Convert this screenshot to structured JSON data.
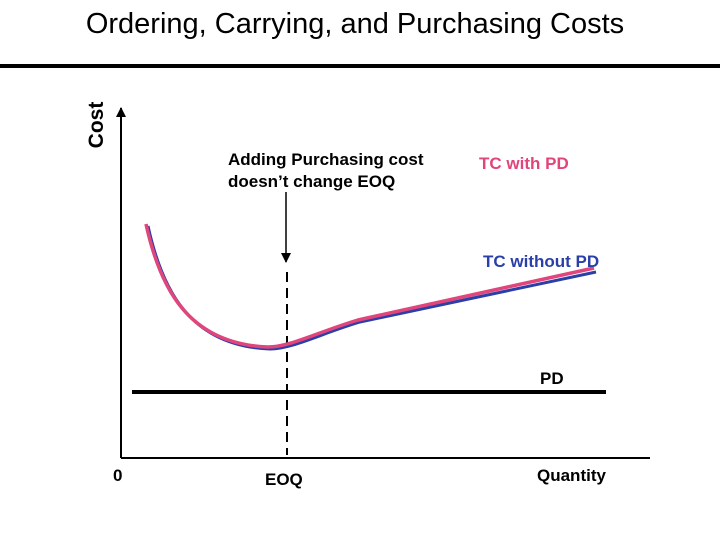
{
  "title": "Ordering, Carrying, and Purchasing Costs",
  "axes": {
    "y_label": "Cost",
    "x_label": "Quantity",
    "origin_label": "0",
    "eoq_label": "EOQ"
  },
  "annotation": {
    "line1": "Adding Purchasing cost",
    "line2": "doesn’t change EOQ"
  },
  "curves": {
    "tc_with_pd": {
      "label": "TC with PD",
      "color": "#e0457b"
    },
    "tc_without_pd": {
      "label": "TC without PD",
      "color": "#2a3fa8"
    },
    "pd": {
      "label": "PD",
      "color": "#000000"
    }
  }
}
